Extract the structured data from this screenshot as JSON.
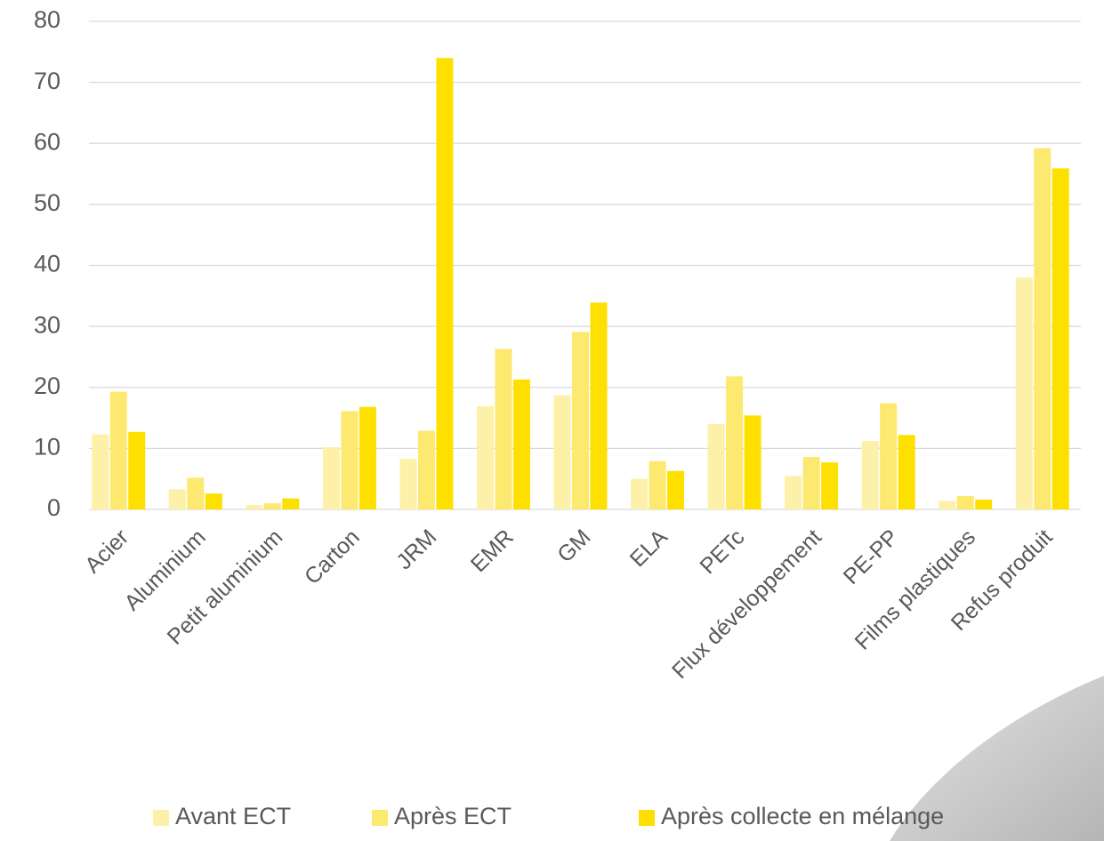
{
  "chart_data": {
    "type": "bar",
    "categories": [
      "Acier",
      "Aluminium",
      "Petit aluminium",
      "Carton",
      "JRM",
      "EMR",
      "GM",
      "ELA",
      "PETc",
      "Flux développement",
      "PE-PP",
      "Films plastiques",
      "Refus produit"
    ],
    "series": [
      {
        "name": "Avant ECT",
        "color": "#fdf1a9",
        "values": [
          12.3,
          3.3,
          0.7,
          10.2,
          8.3,
          16.9,
          18.7,
          5.0,
          14.0,
          5.5,
          11.2,
          1.4,
          38.0
        ]
      },
      {
        "name": "Après ECT",
        "color": "#fde96f",
        "values": [
          19.3,
          5.2,
          1.0,
          16.1,
          12.9,
          26.3,
          29.1,
          7.9,
          21.8,
          8.6,
          17.4,
          2.2,
          59.2
        ]
      },
      {
        "name": "Après collecte en mélange",
        "color": "#fde000",
        "values": [
          12.7,
          2.6,
          1.8,
          16.8,
          74.0,
          21.3,
          33.9,
          6.3,
          15.4,
          7.7,
          12.2,
          1.6,
          55.9
        ]
      }
    ],
    "ylim": [
      0,
      80
    ],
    "yticks": [
      0,
      10,
      20,
      30,
      40,
      50,
      60,
      70,
      80
    ],
    "grid": true,
    "legend": "bottom"
  }
}
